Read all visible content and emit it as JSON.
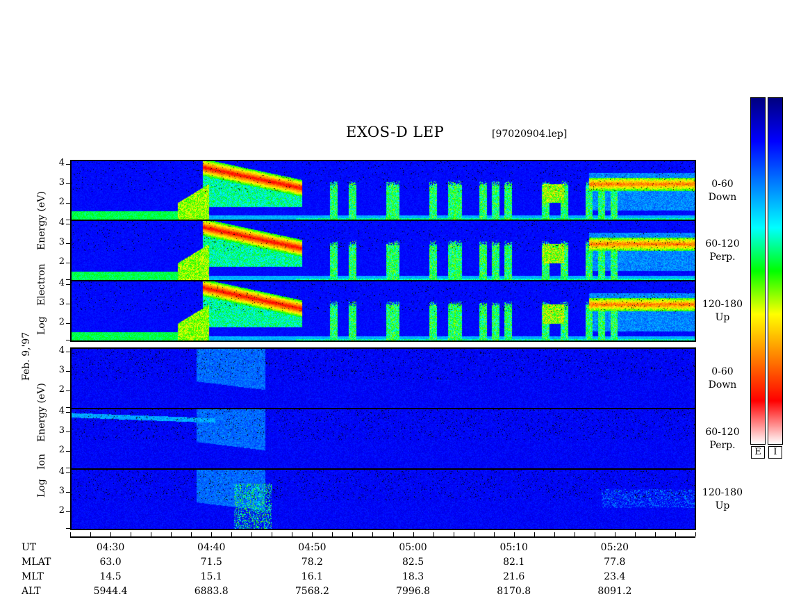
{
  "header": {
    "title": "EXOS-D LEP",
    "filename": "[97020904.lep]"
  },
  "left_labels": {
    "electron": [
      "Log",
      "Electron",
      "Energy (eV)"
    ],
    "date": "Feb. 9,'97",
    "ion": [
      "Log",
      "Ion",
      "Energy (eV)"
    ]
  },
  "panels": [
    {
      "id": "e-down",
      "species": "electron",
      "pitch": "0-60",
      "dir": "Down"
    },
    {
      "id": "e-perp",
      "species": "electron",
      "pitch": "60-120",
      "dir": "Perp."
    },
    {
      "id": "e-up",
      "species": "electron",
      "pitch": "120-180",
      "dir": "Up"
    },
    {
      "id": "i-down",
      "species": "ion",
      "pitch": "0-60",
      "dir": "Down"
    },
    {
      "id": "i-perp",
      "species": "ion",
      "pitch": "60-120",
      "dir": "Perp."
    },
    {
      "id": "i-up",
      "species": "ion",
      "pitch": "120-180",
      "dir": "Up"
    }
  ],
  "colorbar": {
    "labels": [
      "E",
      "I"
    ],
    "colors": [
      "#00007f",
      "#0000ff",
      "#0080ff",
      "#00ffff",
      "#00ff00",
      "#ffff00",
      "#ff8000",
      "#ff0000",
      "#ffffff"
    ]
  },
  "chart_data": {
    "type": "heatmap",
    "x_axis": {
      "label": "UT",
      "range": [
        "04:26",
        "05:28"
      ],
      "tick_labels": [
        "04:30",
        "04:40",
        "04:50",
        "05:00",
        "05:10",
        "05:20"
      ]
    },
    "y_axis": {
      "scale": "log10",
      "unit": "eV",
      "tick_labels": [
        "2",
        "3",
        "4"
      ],
      "range_log10": [
        1.1,
        4.2
      ]
    },
    "ephemeris": {
      "rows": [
        {
          "label": "MLAT",
          "values": [
            "63.0",
            "71.5",
            "78.2",
            "82.5",
            "82.1",
            "77.8"
          ]
        },
        {
          "label": "MLT",
          "values": [
            "14.5",
            "15.1",
            "16.1",
            "18.3",
            "21.6",
            "23.4"
          ]
        },
        {
          "label": "ALT",
          "values": [
            "5944.4",
            "6883.8",
            "7568.2",
            "7996.8",
            "8170.8",
            "8091.2"
          ]
        }
      ]
    }
  }
}
